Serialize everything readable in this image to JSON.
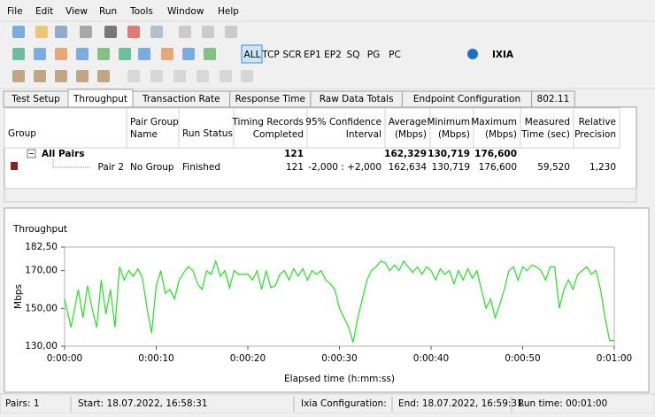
{
  "menu": [
    "File",
    "Edit",
    "View",
    "Run",
    "Tools",
    "Window",
    "Help"
  ],
  "toolbar_filters": [
    "ALL",
    "TCP",
    "SCR",
    "EP1",
    "EP2",
    "SQ",
    "PG",
    "PC"
  ],
  "logo": "IXIA",
  "tabs": [
    "Test Setup",
    "Throughput",
    "Transaction Rate",
    "Response Time",
    "Raw Data Totals",
    "Endpoint Configuration",
    "802.11"
  ],
  "active_tab": 1,
  "table": {
    "columns": [
      [
        "Group"
      ],
      [
        "Pair Group",
        "Name"
      ],
      [
        "Run Status"
      ],
      [
        "Timing Records",
        "Completed"
      ],
      [
        "95% Confidence",
        "Interval"
      ],
      [
        "Average",
        "(Mbps)"
      ],
      [
        "Minimum",
        "(Mbps)"
      ],
      [
        "Maximum",
        "(Mbps)"
      ],
      [
        "Measured",
        "Time (sec)"
      ],
      [
        "Relative",
        "Precision"
      ]
    ],
    "rows": [
      [
        "All Pairs",
        null,
        null,
        "121",
        null,
        "162,329",
        "130,719",
        "176,600",
        null,
        null
      ],
      [
        "Pair 2",
        "No Group",
        "Finished",
        "121",
        "-2,000 : +2,000",
        "162,634",
        "130,719",
        "176,600",
        "59,520",
        "1,230"
      ]
    ]
  },
  "chart_data": {
    "type": "line",
    "title": "Throughput",
    "xlabel": "Elapsed time (h:mm:ss)",
    "ylabel": "Mbps",
    "color": "#22e022",
    "x": [
      0,
      0.7,
      1.5,
      2,
      2.5,
      3,
      3.5,
      4,
      4.5,
      5,
      5.5,
      6,
      6.5,
      7,
      7.5,
      8,
      8.5,
      9,
      9.5,
      10,
      10.5,
      11,
      11.5,
      12,
      12.5,
      13,
      13.5,
      14,
      14.5,
      15,
      15.5,
      16,
      16.5,
      17,
      17.5,
      18,
      18.5,
      19,
      20,
      20.5,
      21,
      21.5,
      22,
      22.5,
      23,
      23.5,
      24,
      24.5,
      25,
      25.5,
      26,
      26.5,
      27,
      27.5,
      28,
      28.5,
      29,
      29.5,
      30,
      31,
      31.5,
      32,
      32.5,
      33,
      33.5,
      34,
      34.5,
      35,
      35.5,
      36,
      36.5,
      37,
      37.5,
      38,
      38.5,
      39,
      39.5,
      40,
      40.5,
      41,
      41.5,
      42,
      42.5,
      43,
      43.5,
      44,
      44.5,
      45,
      45.5,
      46,
      46.5,
      47,
      47.5,
      48,
      48.5,
      49,
      49.5,
      50,
      50.5,
      51,
      51.5,
      52,
      52.5,
      53,
      53.5,
      54,
      54.5,
      55,
      55.5,
      56,
      56.5,
      57,
      57.5,
      58,
      58.5,
      59,
      59.5,
      60
    ],
    "values": [
      155,
      140,
      160,
      145,
      162,
      150,
      140,
      165,
      147,
      160,
      140,
      172,
      165,
      170,
      167,
      171,
      166,
      150,
      137,
      162,
      170,
      158,
      160,
      155,
      165,
      169,
      172,
      170,
      163,
      160,
      170,
      168,
      175,
      167,
      170,
      161,
      170,
      168,
      168,
      165,
      170,
      160,
      170,
      161,
      162,
      168,
      170,
      165,
      171,
      167,
      171,
      165,
      170,
      168,
      170,
      165,
      163,
      160,
      150,
      140,
      132,
      145,
      155,
      165,
      170,
      172,
      175,
      174,
      170,
      173,
      170,
      175,
      172,
      169,
      172,
      168,
      172,
      170,
      165,
      171,
      168,
      170,
      163,
      170,
      165,
      171,
      166,
      170,
      160,
      150,
      155,
      145,
      152,
      160,
      170,
      172,
      165,
      172,
      170,
      173,
      172,
      170,
      165,
      172,
      172,
      150,
      160,
      165,
      160,
      168,
      170,
      172,
      168,
      170,
      160,
      145,
      133,
      133
    ],
    "xlim": [
      0,
      60
    ],
    "ylim": [
      130,
      182.5
    ],
    "xticks": [
      {
        "value": 0,
        "label": "0:00:00"
      },
      {
        "value": 10,
        "label": "0:00:10"
      },
      {
        "value": 20,
        "label": "0:00:20"
      },
      {
        "value": 30,
        "label": "0:00:30"
      },
      {
        "value": 40,
        "label": "0:00:40"
      },
      {
        "value": 50,
        "label": "0:00:50"
      },
      {
        "value": 60,
        "label": "0:01:00"
      }
    ],
    "yticks": [
      {
        "value": 130,
        "label": "130,00"
      },
      {
        "value": 150,
        "label": "150,00"
      },
      {
        "value": 170,
        "label": "170,00"
      },
      {
        "value": 182.5,
        "label": "182,50"
      }
    ],
    "grid": false
  },
  "status": [
    "Pairs: 1",
    "Start: 18.07.2022, 16:58:31",
    "Ixia Configuration:",
    "End: 18.07.2022, 16:59:31",
    "Run time: 00:01:00"
  ]
}
